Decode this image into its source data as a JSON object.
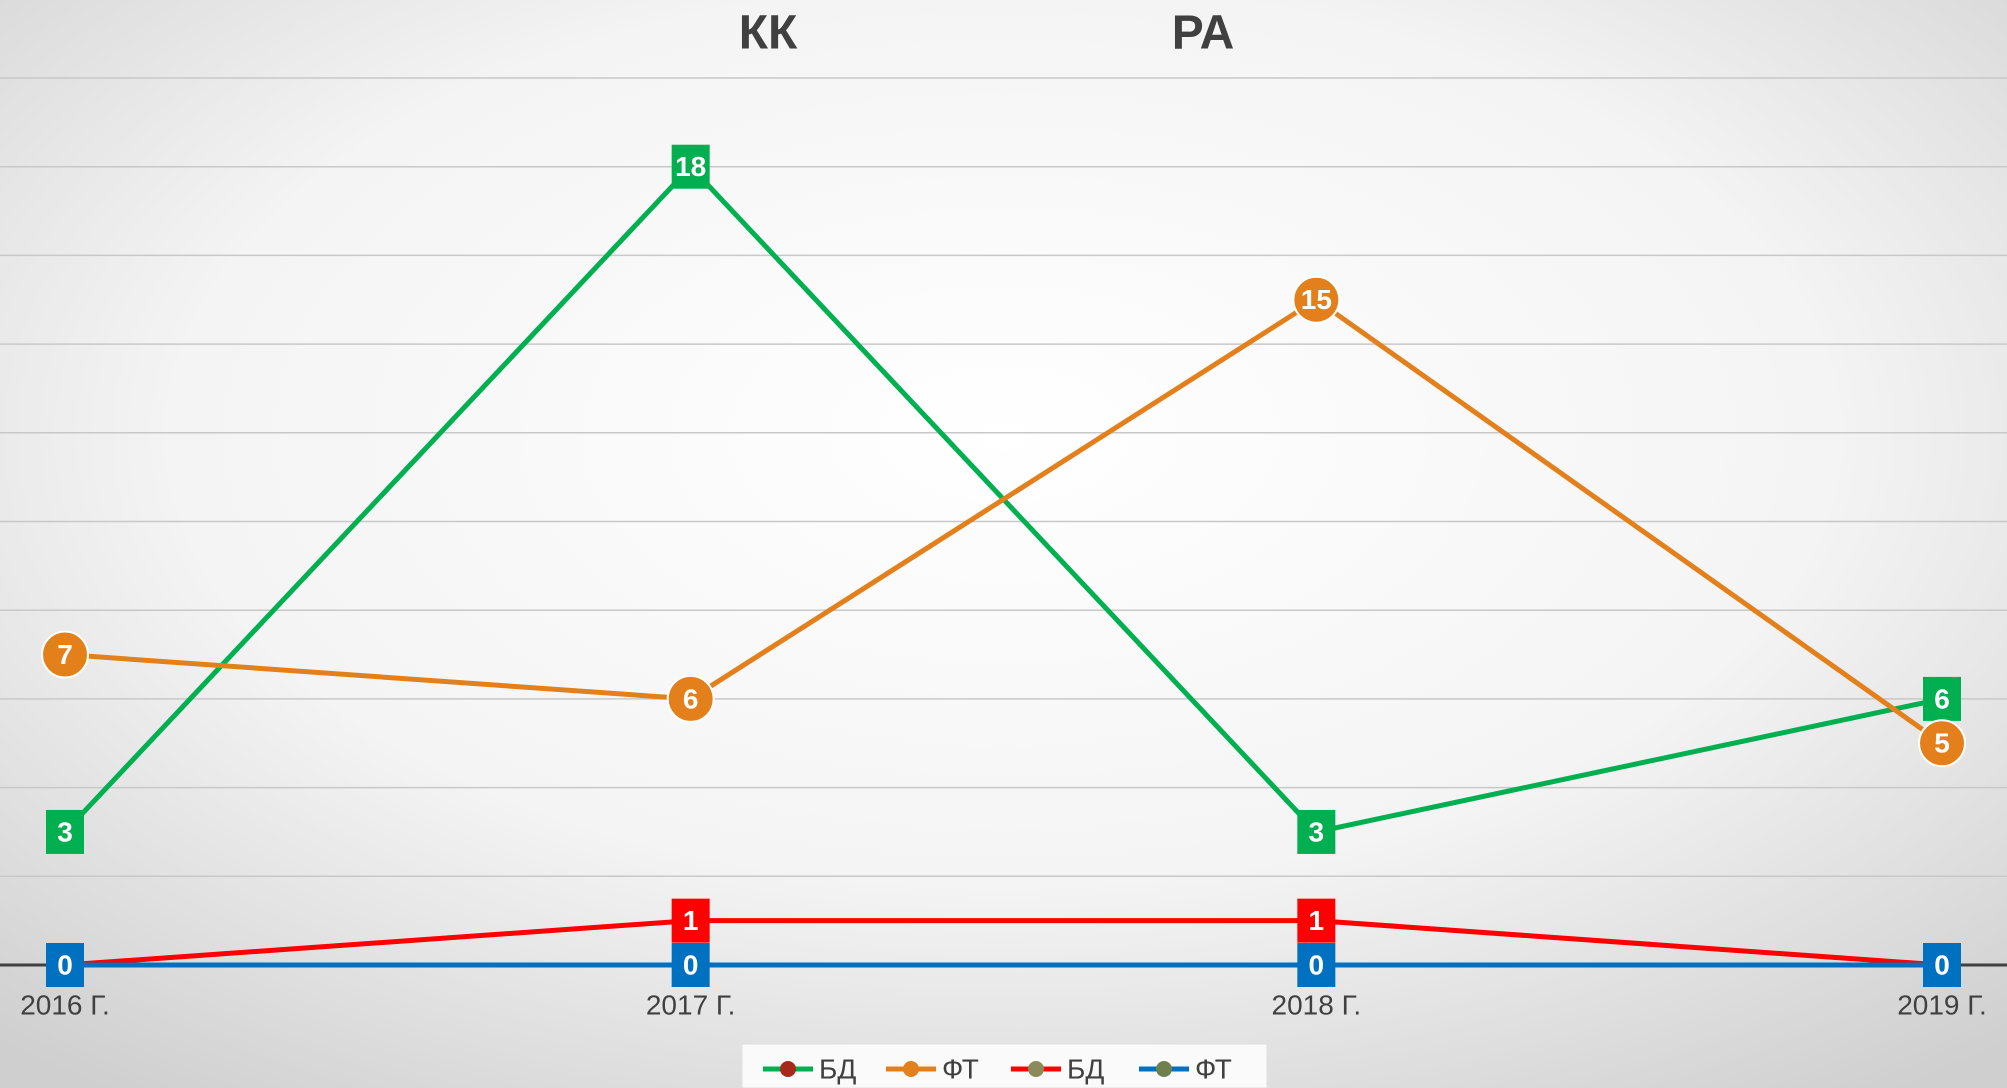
{
  "chart_data": {
    "type": "line",
    "titles": [
      "КК",
      "РА"
    ],
    "categories": [
      "2016 Г.",
      "2017 Г.",
      "2018 Г.",
      "2019 Г."
    ],
    "series": [
      {
        "name": "БД",
        "color": "#00b050",
        "marker": "square",
        "marker_color": "#a52a1a",
        "values": [
          3,
          18,
          3,
          6
        ]
      },
      {
        "name": "ФТ",
        "color": "#e3801c",
        "marker": "circle",
        "marker_color": "#e3801c",
        "values": [
          7,
          6,
          15,
          5
        ]
      },
      {
        "name": "БД",
        "color": "#ff0000",
        "marker": "square",
        "marker_color": "#8a8a5a",
        "values": [
          0,
          1,
          1,
          0
        ]
      },
      {
        "name": "ФТ",
        "color": "#0070c0",
        "marker": "square",
        "marker_color": "#6f8050",
        "values": [
          0,
          0,
          0,
          0
        ]
      }
    ],
    "ylim": [
      0,
      20
    ],
    "yticks": [
      0,
      2,
      4,
      6,
      8,
      10,
      12,
      14,
      16,
      18,
      20
    ],
    "grid": true,
    "legend": "bottom"
  }
}
